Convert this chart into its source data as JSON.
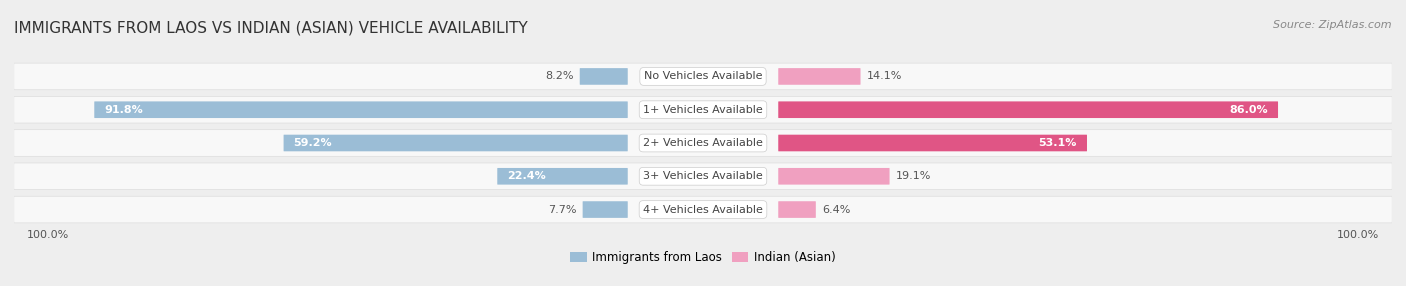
{
  "title": "IMMIGRANTS FROM LAOS VS INDIAN (ASIAN) VEHICLE AVAILABILITY",
  "source": "Source: ZipAtlas.com",
  "categories": [
    "No Vehicles Available",
    "1+ Vehicles Available",
    "2+ Vehicles Available",
    "3+ Vehicles Available",
    "4+ Vehicles Available"
  ],
  "laos_values": [
    8.2,
    91.8,
    59.2,
    22.4,
    7.7
  ],
  "indian_values": [
    14.1,
    86.0,
    53.1,
    19.1,
    6.4
  ],
  "laos_color": "#9bbdd6",
  "indian_color_large": "#e05585",
  "indian_color_small": "#f0a0c0",
  "laos_label": "Immigrants from Laos",
  "indian_label": "Indian (Asian)",
  "axis_label": "100.0%",
  "background_color": "#eeeeee",
  "row_bg_color": "#f8f8f8",
  "title_fontsize": 11,
  "source_fontsize": 8,
  "label_fontsize": 8,
  "value_fontsize": 8
}
